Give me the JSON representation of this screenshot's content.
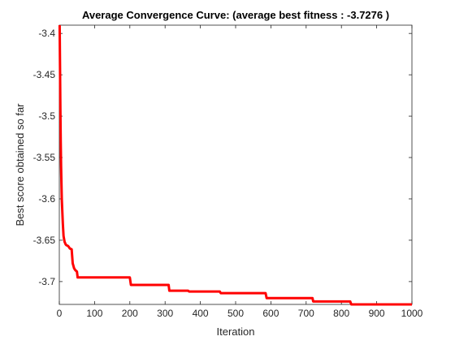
{
  "chart_data": {
    "type": "line",
    "title": "Average Convergence Curve: (average best fitness : -3.7276 )",
    "xlabel": "Iteration",
    "ylabel": "Best score obtained so far",
    "xlim": [
      0,
      1000
    ],
    "ylim": [
      -3.7276,
      -3.39
    ],
    "grid": false,
    "box": true,
    "xticks": [
      0,
      100,
      200,
      300,
      400,
      500,
      600,
      700,
      800,
      900,
      1000
    ],
    "xtick_labels": [
      "0",
      "100",
      "200",
      "300",
      "400",
      "500",
      "600",
      "700",
      "800",
      "900",
      "1000"
    ],
    "yticks": [
      -3.4,
      -3.45,
      -3.5,
      -3.55,
      -3.6,
      -3.65,
      -3.7
    ],
    "ytick_labels": [
      "-3.4",
      "-3.45",
      "-3.5",
      "-3.55",
      "-3.6",
      "-3.65",
      "-3.7"
    ],
    "series": [
      {
        "color": "#ff0000",
        "x": [
          1,
          2,
          3,
          4,
          5,
          6,
          7,
          8,
          10,
          12,
          15,
          18,
          20,
          25,
          30,
          35,
          38,
          42,
          45,
          50,
          52,
          200,
          203,
          310,
          312,
          365,
          368,
          455,
          458,
          585,
          588,
          718,
          720,
          825,
          828,
          1000
        ],
        "y": [
          -3.39,
          -3.44,
          -3.49,
          -3.53,
          -3.56,
          -3.58,
          -3.6,
          -3.61,
          -3.63,
          -3.645,
          -3.652,
          -3.655,
          -3.656,
          -3.657,
          -3.66,
          -3.661,
          -3.678,
          -3.684,
          -3.686,
          -3.688,
          -3.695,
          -3.695,
          -3.704,
          -3.704,
          -3.711,
          -3.711,
          -3.712,
          -3.712,
          -3.714,
          -3.714,
          -3.72,
          -3.72,
          -3.724,
          -3.724,
          -3.7276,
          -3.7276
        ]
      }
    ]
  }
}
